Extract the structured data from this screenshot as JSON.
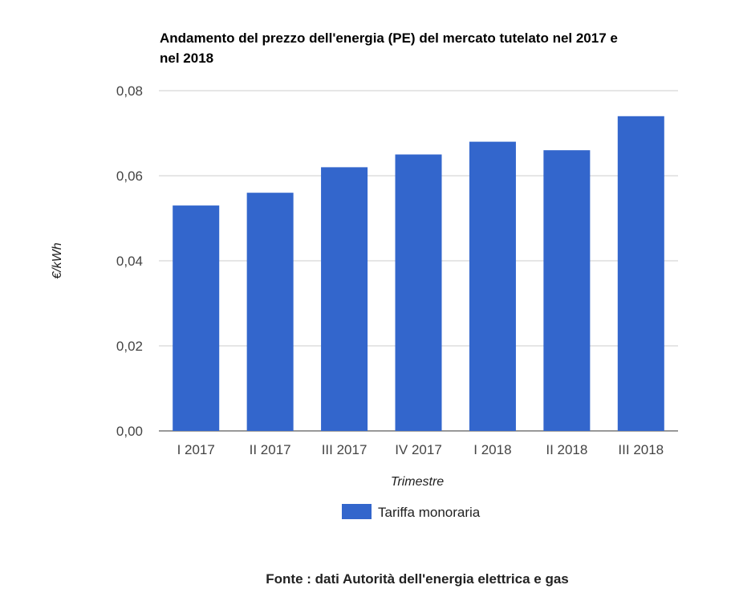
{
  "chart_data": {
    "type": "bar",
    "title_lines": [
      "Andamento del prezzo dell'energia (PE) del mercato tutelato nel 2017 e",
      "nel 2018"
    ],
    "categories": [
      "I 2017",
      "II 2017",
      "III 2017",
      "IV 2017",
      "I 2018",
      "II 2018",
      "III 2018"
    ],
    "series": [
      {
        "name": "Tariffa monoraria",
        "values": [
          0.053,
          0.056,
          0.062,
          0.065,
          0.068,
          0.066,
          0.074
        ]
      }
    ],
    "xlabel": "Trimestre",
    "ylabel": "€/kWh",
    "ylim": [
      0,
      0.08
    ],
    "yticks": [
      "0,00",
      "0,02",
      "0,04",
      "0,06",
      "0,08"
    ],
    "grid": true,
    "legend_position": "bottom",
    "color": "#3366cc"
  },
  "source": "Fonte : dati Autorità dell'energia elettrica e gas"
}
